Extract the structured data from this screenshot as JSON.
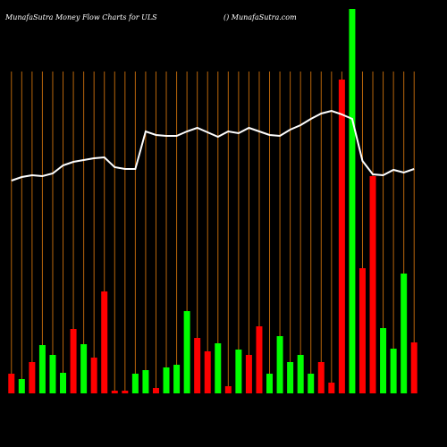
{
  "chart_data": {
    "type": "bar",
    "title": "MunafaSutra  Money Flow  Charts for ULS",
    "subtitle": "() MunafaSutra.com",
    "categories": [
      null,
      null,
      null,
      null,
      null,
      null,
      null,
      null,
      null,
      null,
      null,
      null,
      null,
      null,
      null,
      null,
      null,
      null,
      null,
      null,
      null,
      null,
      null,
      null,
      null,
      null,
      null,
      null,
      null,
      null,
      null,
      null,
      null,
      null,
      null,
      null,
      null,
      null,
      null,
      null
    ],
    "series": [
      {
        "type": "bar",
        "colors": [
          "#ff0000",
          "#00ff00",
          "#ff0000",
          "#00ff00",
          "#00ff00",
          "#00ff00",
          "#ff0000",
          "#00ff00",
          "#ff0000",
          "#ff0000",
          "#ff0000",
          "#ff0000",
          "#00ff00",
          "#00ff00",
          "#ff0000",
          "#00ff00",
          "#00ff00",
          "#00ff00",
          "#ff0000",
          "#ff0000",
          "#00ff00",
          "#ff0000",
          "#00ff00",
          "#ff0000",
          "#ff0000",
          "#00ff00",
          "#00ff00",
          "#00ff00",
          "#00ff00",
          "#00ff00",
          "#ff0000",
          "#ff0000",
          "#ff0000",
          "#00ff00",
          "#ff0000",
          "#ff0000",
          "#00ff00",
          "#00ff00",
          "#00ff00",
          "#ff0000"
        ],
        "values": [
          22,
          16,
          35,
          54,
          43,
          23,
          72,
          55,
          40,
          114,
          3,
          3,
          22,
          26,
          6,
          29,
          32,
          92,
          62,
          47,
          56,
          8,
          49,
          43,
          75,
          22,
          64,
          35,
          43,
          22,
          35,
          12,
          351,
          430,
          140,
          243,
          73,
          50,
          134,
          57
        ]
      },
      {
        "type": "line",
        "color": "#ffffff",
        "values": [
          238,
          242,
          244,
          243,
          246,
          255,
          259,
          261,
          263,
          264,
          253,
          251,
          251,
          293,
          289,
          288,
          288,
          293,
          297,
          292,
          287,
          293,
          291,
          297,
          293,
          289,
          288,
          295,
          300,
          307,
          313,
          316,
          312,
          307,
          260,
          245,
          244,
          250,
          247,
          251
        ]
      }
    ],
    "ylim": [
      0,
      430
    ],
    "grid_color": "#b8650b"
  }
}
